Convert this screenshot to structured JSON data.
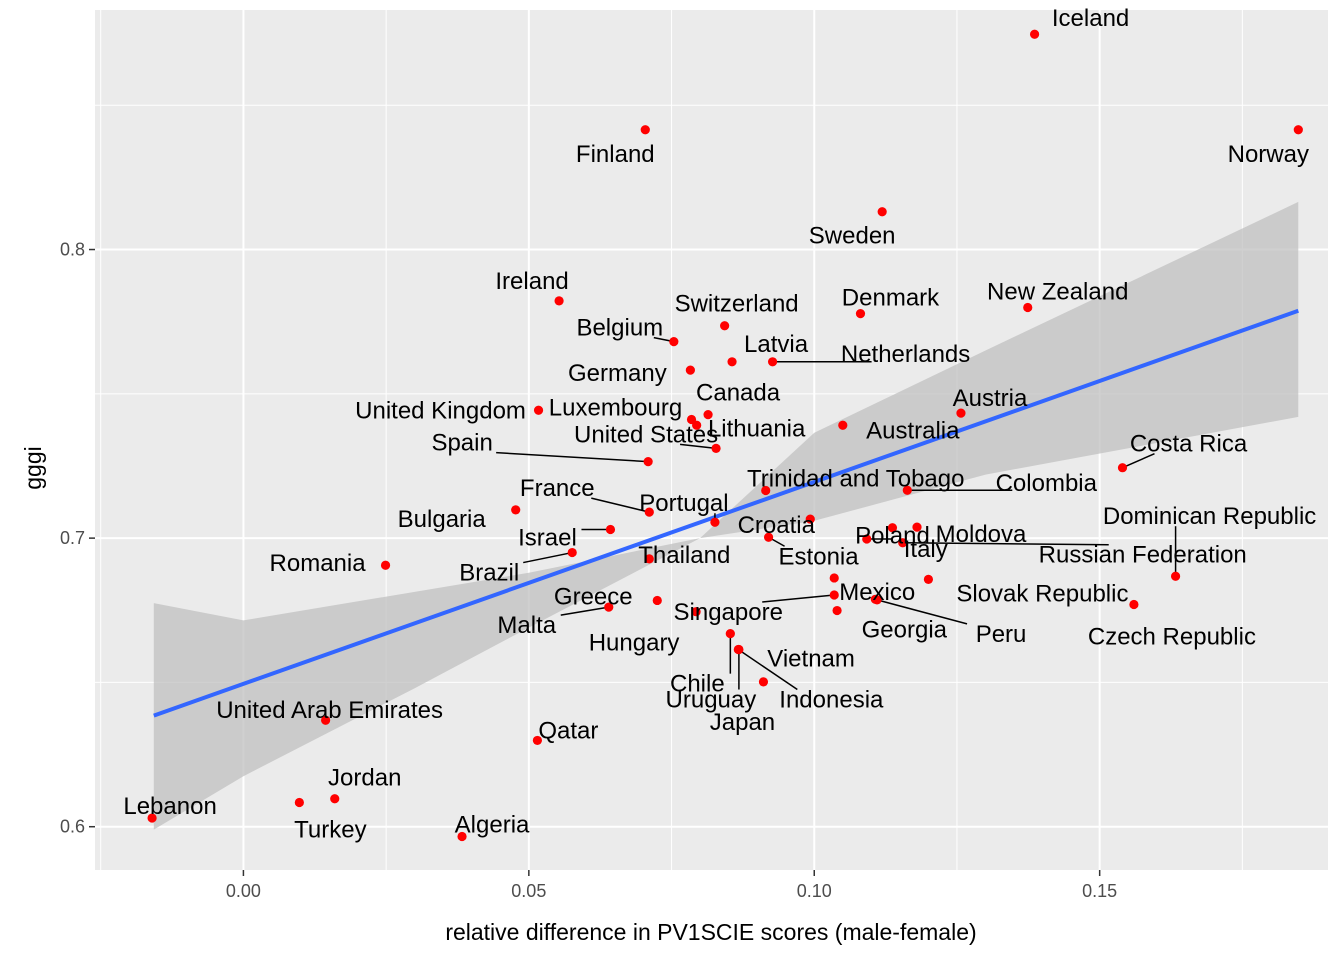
{
  "chart_data": {
    "type": "scatter",
    "xlabel": "relative difference in PV1SCIE scores (male-female)",
    "ylabel": "gggi",
    "xlim": [
      -0.026,
      0.19
    ],
    "ylim": [
      0.585,
      0.883
    ],
    "x_ticks": [
      {
        "value": 0.0,
        "label": "0.00"
      },
      {
        "value": 0.05,
        "label": "0.05"
      },
      {
        "value": 0.1,
        "label": "0.10"
      },
      {
        "value": 0.15,
        "label": "0.15"
      }
    ],
    "y_ticks": [
      {
        "value": 0.6,
        "label": "0.6"
      },
      {
        "value": 0.7,
        "label": "0.7"
      },
      {
        "value": 0.8,
        "label": "0.8"
      }
    ],
    "grid": true,
    "point_color": "#ff0000",
    "trend": {
      "method": "linear",
      "color": "#3366ff",
      "band_color": "#bebebe",
      "line": [
        [
          -0.0157,
          0.6385
        ],
        [
          0.1848,
          0.7788
        ]
      ],
      "band_upper": [
        [
          -0.0157,
          0.6775
        ],
        [
          0.0,
          0.6715
        ],
        [
          0.05,
          0.688
        ],
        [
          0.08,
          0.7
        ],
        [
          0.1,
          0.7365
        ],
        [
          0.13,
          0.765
        ],
        [
          0.1848,
          0.8165
        ]
      ],
      "band_lower": [
        [
          -0.0157,
          0.599
        ],
        [
          0.0,
          0.6175
        ],
        [
          0.03,
          0.648
        ],
        [
          0.05,
          0.669
        ],
        [
          0.08,
          0.7
        ],
        [
          0.1,
          0.706
        ],
        [
          0.13,
          0.722
        ],
        [
          0.1848,
          0.742
        ]
      ]
    },
    "points": [
      {
        "label": "Iceland",
        "x": 0.1386,
        "y": 0.8746
      },
      {
        "label": "Finland",
        "x": 0.0704,
        "y": 0.8415
      },
      {
        "label": "Norway",
        "x": 0.1848,
        "y": 0.8415
      },
      {
        "label": "Sweden",
        "x": 0.1119,
        "y": 0.8131
      },
      {
        "label": "Ireland",
        "x": 0.0553,
        "y": 0.7822
      },
      {
        "label": "Denmark",
        "x": 0.1081,
        "y": 0.7778
      },
      {
        "label": "New Zealand",
        "x": 0.1374,
        "y": 0.7799
      },
      {
        "label": "Switzerland",
        "x": 0.0843,
        "y": 0.7736
      },
      {
        "label": "Belgium",
        "x": 0.0754,
        "y": 0.7681
      },
      {
        "label": "Latvia",
        "x": 0.0856,
        "y": 0.7611
      },
      {
        "label": "Netherlands",
        "x": 0.0927,
        "y": 0.7611
      },
      {
        "label": "Germany",
        "x": 0.0783,
        "y": 0.7582
      },
      {
        "label": "Canada",
        "x": 0.0814,
        "y": 0.7428
      },
      {
        "label": "Luxembourg",
        "x": 0.0785,
        "y": 0.7411
      },
      {
        "label": "United Kingdom",
        "x": 0.0517,
        "y": 0.7443
      },
      {
        "label": "Austria",
        "x": 0.1257,
        "y": 0.7433
      },
      {
        "label": "Lithuania",
        "x": 0.0794,
        "y": 0.7391
      },
      {
        "label": "Australia",
        "x": 0.105,
        "y": 0.7391
      },
      {
        "label": "United States",
        "x": 0.0828,
        "y": 0.7311
      },
      {
        "label": "Spain",
        "x": 0.0709,
        "y": 0.7265
      },
      {
        "label": "Costa Rica",
        "x": 0.154,
        "y": 0.7244
      },
      {
        "label": "Trinidad and Tobago",
        "x": 0.0915,
        "y": 0.7165
      },
      {
        "label": "Colombia",
        "x": 0.1163,
        "y": 0.7166
      },
      {
        "label": "France",
        "x": 0.0711,
        "y": 0.709
      },
      {
        "label": "Bulgaria",
        "x": 0.0477,
        "y": 0.7098
      },
      {
        "label": "Portugal",
        "x": 0.0826,
        "y": 0.7055
      },
      {
        "label": "Croatia",
        "x": 0.0993,
        "y": 0.7066
      },
      {
        "label": "Poland",
        "x": 0.1137,
        "y": 0.7036
      },
      {
        "label": "Moldova",
        "x": 0.118,
        "y": 0.7038
      },
      {
        "label": "Israel",
        "x": 0.0643,
        "y": 0.703
      },
      {
        "label": "Estonia",
        "x": 0.092,
        "y": 0.7003
      },
      {
        "label": "Italy",
        "x": 0.1092,
        "y": 0.6997
      },
      {
        "label": "Russian Federation",
        "x": 0.1155,
        "y": 0.6984
      },
      {
        "label": "Thailand",
        "x": 0.0711,
        "y": 0.6928
      },
      {
        "label": "Brazil",
        "x": 0.0576,
        "y": 0.695
      },
      {
        "label": "Romania",
        "x": 0.0249,
        "y": 0.6906
      },
      {
        "label": "Dominican Republic",
        "x": 0.1633,
        "y": 0.6868
      },
      {
        "label": "Slovak Republic",
        "x": 0.12,
        "y": 0.6857
      },
      {
        "label": "Mexico",
        "x": 0.1035,
        "y": 0.6862
      },
      {
        "label": "Singapore",
        "x": 0.1035,
        "y": 0.6803
      },
      {
        "label": "Georgia",
        "x": 0.1107,
        "y": 0.6788
      },
      {
        "label": "Peru",
        "x": 0.111,
        "y": 0.6786
      },
      {
        "label": "Greece",
        "x": 0.0725,
        "y": 0.6784
      },
      {
        "label": "Malta",
        "x": 0.064,
        "y": 0.6761
      },
      {
        "label": "Czech Republic",
        "x": 0.156,
        "y": 0.677
      },
      {
        "label": "Hungary",
        "x": 0.0793,
        "y": 0.6745
      },
      {
        "label": "Vietnam",
        "x": 0.104,
        "y": 0.6749
      },
      {
        "label": "Chile",
        "x": 0.0853,
        "y": 0.6669
      },
      {
        "label": "Uruguay",
        "x": 0.0868,
        "y": 0.6614
      },
      {
        "label": "Indonesia",
        "x": 0.0867,
        "y": 0.6614
      },
      {
        "label": "Japan",
        "x": 0.0911,
        "y": 0.6502
      },
      {
        "label": "United Arab Emirates",
        "x": 0.0144,
        "y": 0.6369
      },
      {
        "label": "Qatar",
        "x": 0.0515,
        "y": 0.6299
      },
      {
        "label": "Jordan",
        "x": 0.016,
        "y": 0.6097
      },
      {
        "label": "Turkey",
        "x": 0.0098,
        "y": 0.6084
      },
      {
        "label": "Lebanon",
        "x": -0.016,
        "y": 0.603
      },
      {
        "label": "Algeria",
        "x": 0.0383,
        "y": 0.5966
      }
    ]
  }
}
